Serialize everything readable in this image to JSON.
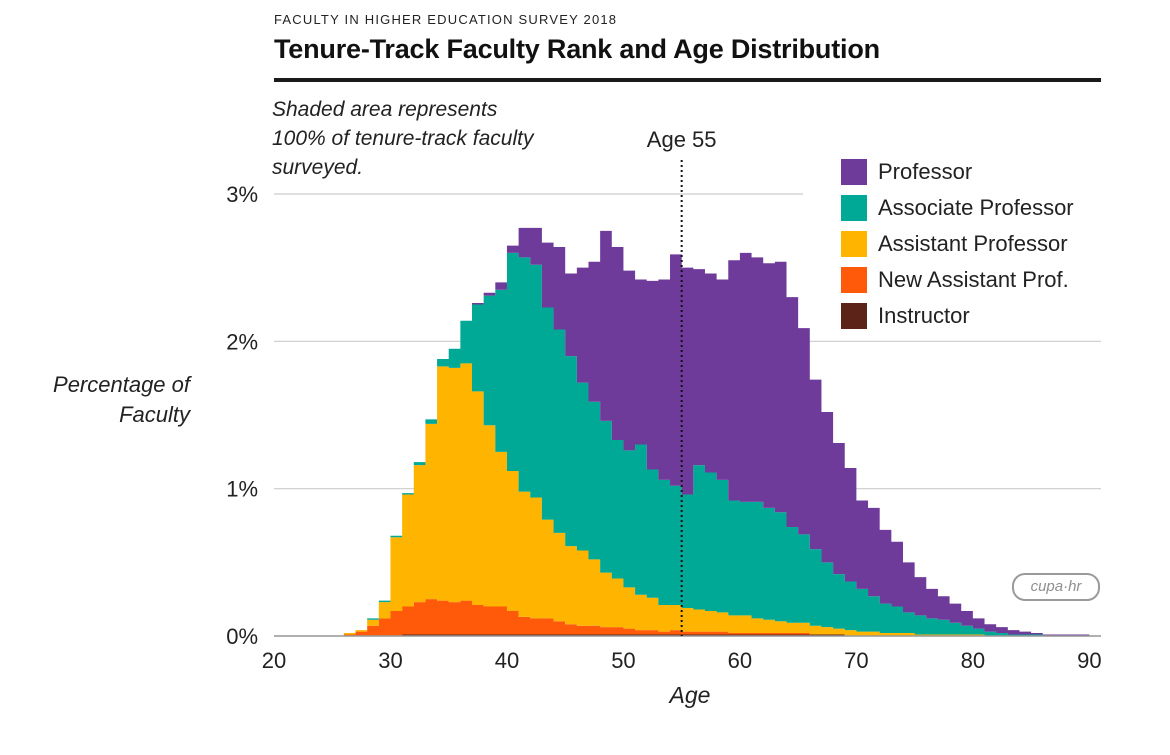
{
  "header": {
    "kicker": "FACULTY IN HIGHER EDUCATION SURVEY 2018",
    "title": "Tenure-Track Faculty Rank and Age Distribution",
    "note": "Shaded area represents 100% of tenure-track faculty surveyed."
  },
  "logo": {
    "text": "cupa·hr"
  },
  "colors": {
    "Professor": "#6F3B9A",
    "Associate Professor": "#00A896",
    "Assistant Professor": "#FFB400",
    "New Assistant Prof.": "#FF5A0A",
    "Instructor": "#5C2418",
    "gridline": "#cccccc",
    "title_rule": "#1a1a1a"
  },
  "chart_data": {
    "type": "area",
    "stacked": true,
    "stepped": true,
    "xlabel": "Age",
    "ylabel": "Percentage of Faculty",
    "xlim": [
      20,
      91
    ],
    "ylim": [
      0,
      3
    ],
    "xticks": [
      20,
      30,
      40,
      50,
      60,
      70,
      80,
      90
    ],
    "xtick_labels": [
      "20",
      "30",
      "40",
      "50",
      "60",
      "70",
      "80",
      "90"
    ],
    "yticks": [
      0,
      1,
      2,
      3
    ],
    "ytick_labels": [
      "0%",
      "1%",
      "2%",
      "3%"
    ],
    "grid": true,
    "legend_position": "top-right",
    "annotation": {
      "label": "Age 55",
      "x": 55,
      "style": "dotted vertical line"
    },
    "x": [
      26,
      27,
      28,
      29,
      30,
      31,
      32,
      33,
      34,
      35,
      36,
      37,
      38,
      39,
      40,
      41,
      42,
      43,
      44,
      45,
      46,
      47,
      48,
      49,
      50,
      51,
      52,
      53,
      54,
      55,
      56,
      57,
      58,
      59,
      60,
      61,
      62,
      63,
      64,
      65,
      66,
      67,
      68,
      69,
      70,
      71,
      72,
      73,
      74,
      75,
      76,
      77,
      78,
      79,
      80,
      81,
      82,
      83,
      84,
      85,
      86,
      87,
      88,
      89,
      90
    ],
    "series": [
      {
        "name": "Instructor",
        "values": [
          0,
          0,
          0,
          0,
          0,
          0.01,
          0.01,
          0.01,
          0.01,
          0.01,
          0.01,
          0.01,
          0.01,
          0.01,
          0.01,
          0.01,
          0.01,
          0.01,
          0.01,
          0.01,
          0.01,
          0.01,
          0.01,
          0.01,
          0.01,
          0.01,
          0.01,
          0.01,
          0.01,
          0.01,
          0.01,
          0.01,
          0.01,
          0.01,
          0.01,
          0.01,
          0.01,
          0.01,
          0.01,
          0.01,
          0.01,
          0.01,
          0.01,
          0,
          0,
          0,
          0,
          0,
          0,
          0,
          0,
          0,
          0,
          0,
          0,
          0,
          0,
          0,
          0,
          0,
          0,
          0,
          0,
          0,
          0
        ]
      },
      {
        "name": "New Assistant Prof.",
        "values": [
          0.01,
          0.03,
          0.07,
          0.12,
          0.17,
          0.19,
          0.22,
          0.24,
          0.23,
          0.22,
          0.23,
          0.2,
          0.19,
          0.19,
          0.16,
          0.12,
          0.11,
          0.11,
          0.09,
          0.07,
          0.06,
          0.06,
          0.05,
          0.05,
          0.04,
          0.03,
          0.03,
          0.02,
          0.03,
          0.02,
          0.02,
          0.02,
          0.02,
          0.01,
          0.01,
          0.01,
          0.01,
          0.01,
          0.01,
          0.01,
          0,
          0,
          0,
          0,
          0,
          0,
          0,
          0,
          0,
          0,
          0,
          0,
          0,
          0,
          0,
          0,
          0,
          0,
          0,
          0,
          0,
          0,
          0,
          0,
          0
        ]
      },
      {
        "name": "Assistant Professor",
        "values": [
          0.01,
          0.01,
          0.04,
          0.11,
          0.5,
          0.76,
          0.93,
          1.19,
          1.59,
          1.59,
          1.61,
          1.45,
          1.23,
          1.05,
          0.95,
          0.85,
          0.82,
          0.67,
          0.6,
          0.53,
          0.51,
          0.45,
          0.37,
          0.33,
          0.28,
          0.24,
          0.22,
          0.18,
          0.17,
          0.16,
          0.15,
          0.14,
          0.13,
          0.12,
          0.12,
          0.1,
          0.09,
          0.08,
          0.07,
          0.07,
          0.06,
          0.05,
          0.04,
          0.04,
          0.03,
          0.03,
          0.02,
          0.02,
          0.02,
          0.01,
          0.01,
          0.01,
          0.01,
          0.01,
          0.01,
          0,
          0,
          0,
          0,
          0,
          0,
          0,
          0,
          0,
          0
        ]
      },
      {
        "name": "Associate Professor",
        "values": [
          0,
          0,
          0.01,
          0.01,
          0.01,
          0.01,
          0.02,
          0.03,
          0.05,
          0.13,
          0.29,
          0.59,
          0.88,
          1.1,
          1.48,
          1.59,
          1.58,
          1.44,
          1.38,
          1.29,
          1.14,
          1.07,
          1.03,
          0.94,
          0.93,
          1.02,
          0.87,
          0.85,
          0.81,
          0.77,
          0.98,
          0.94,
          0.9,
          0.78,
          0.77,
          0.79,
          0.76,
          0.74,
          0.65,
          0.6,
          0.52,
          0.44,
          0.37,
          0.33,
          0.29,
          0.24,
          0.2,
          0.18,
          0.14,
          0.13,
          0.11,
          0.1,
          0.08,
          0.06,
          0.04,
          0.03,
          0.02,
          0.01,
          0.01,
          0.01,
          0,
          0,
          0,
          0,
          0
        ]
      },
      {
        "name": "Professor",
        "values": [
          0,
          0,
          0,
          0,
          0,
          0,
          0,
          0,
          0,
          0,
          0,
          0.01,
          0.02,
          0.05,
          0.05,
          0.2,
          0.25,
          0.44,
          0.56,
          0.56,
          0.78,
          0.95,
          1.29,
          1.31,
          1.22,
          1.12,
          1.28,
          1.36,
          1.57,
          1.54,
          1.33,
          1.35,
          1.36,
          1.63,
          1.69,
          1.66,
          1.66,
          1.7,
          1.56,
          1.4,
          1.15,
          1.02,
          0.89,
          0.77,
          0.6,
          0.6,
          0.5,
          0.44,
          0.34,
          0.26,
          0.2,
          0.16,
          0.13,
          0.1,
          0.07,
          0.05,
          0.04,
          0.03,
          0.02,
          0.01,
          0.01,
          0.01,
          0.01,
          0.01,
          0
        ]
      }
    ]
  }
}
